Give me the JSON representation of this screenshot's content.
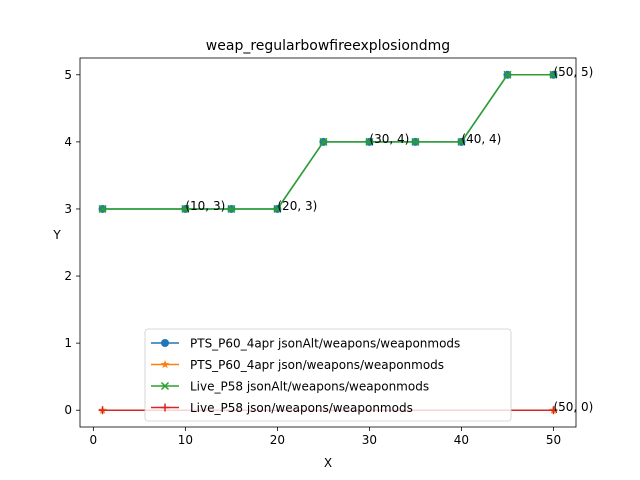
{
  "chart_data": {
    "type": "line",
    "title": "weap_regularbowfireexplosiondmg",
    "xlabel": "X",
    "ylabel": "Y",
    "xlim": [
      -1.45,
      52.45
    ],
    "ylim": [
      -0.25,
      5.25
    ],
    "x_ticks": [
      0,
      10,
      20,
      30,
      40,
      50
    ],
    "y_ticks": [
      0,
      1,
      2,
      3,
      4,
      5
    ],
    "grid": false,
    "legend_position": "lower-center",
    "series": [
      {
        "name": "PTS_P60_4apr jsonAlt/weapons/weaponmods",
        "color": "#1f77b4",
        "marker": "circle",
        "x": [
          1,
          10,
          15,
          20,
          25,
          30,
          35,
          40,
          45,
          50
        ],
        "y": [
          3,
          3,
          3,
          3,
          4,
          4,
          4,
          4,
          5,
          5
        ]
      },
      {
        "name": "PTS_P60_4apr json/weapons/weaponmods",
        "color": "#ff7f0e",
        "marker": "star",
        "x": [
          1,
          50
        ],
        "y": [
          0,
          0
        ]
      },
      {
        "name": "Live_P58 jsonAlt/weapons/weaponmods",
        "color": "#2ca02c",
        "marker": "x",
        "x": [
          1,
          10,
          15,
          20,
          25,
          30,
          35,
          40,
          45,
          50
        ],
        "y": [
          3,
          3,
          3,
          3,
          4,
          4,
          4,
          4,
          5,
          5
        ]
      },
      {
        "name": "Live_P58 json/weapons/weaponmods",
        "color": "#d62728",
        "marker": "plus",
        "x": [
          1,
          50
        ],
        "y": [
          0,
          0
        ]
      }
    ],
    "annotations": [
      {
        "text": "(10, 3)",
        "x": 10,
        "y": 3
      },
      {
        "text": "(20, 3)",
        "x": 20,
        "y": 3
      },
      {
        "text": "(30, 4)",
        "x": 30,
        "y": 4
      },
      {
        "text": "(40, 4)",
        "x": 40,
        "y": 4
      },
      {
        "text": "(50, 5)",
        "x": 50,
        "y": 5
      },
      {
        "text": "(50, 0)",
        "x": 50,
        "y": 0
      }
    ]
  }
}
